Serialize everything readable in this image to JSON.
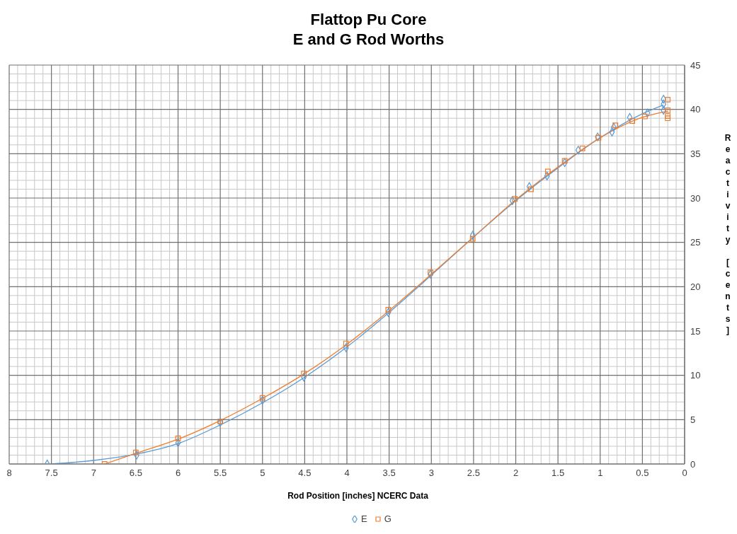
{
  "chart_data": {
    "type": "scatter",
    "title": "Flattop Pu Core\nE and G Rod Worths",
    "xlabel": "Rod Position [inches] NCERC Data",
    "ylabel": "Reactivity [cents]",
    "series": [
      {
        "name": "E",
        "color": "#5b9bd5",
        "marker": "diamond",
        "x": [
          7.55,
          6.49,
          6.0,
          5.5,
          5.0,
          4.51,
          4.01,
          3.51,
          3.01,
          2.51,
          2.04,
          1.84,
          1.63,
          1.42,
          1.26,
          1.03,
          0.86,
          0.84,
          0.65,
          0.44,
          0.25,
          0.25,
          0.25
        ],
        "values": [
          0,
          1.0,
          2.4,
          4.7,
          7.2,
          9.8,
          13.1,
          17.1,
          21.4,
          25.8,
          29.7,
          31.3,
          32.5,
          34.0,
          35.4,
          36.9,
          37.45,
          38.0,
          39.1,
          39.6,
          41.15,
          40.6,
          39.9
        ]
      },
      {
        "name": "G",
        "color": "#ed7d31",
        "marker": "square",
        "x": [
          6.87,
          6.5,
          6.0,
          5.5,
          5.0,
          4.51,
          4.01,
          3.51,
          3.01,
          2.51,
          2.01,
          1.82,
          1.62,
          1.42,
          1.21,
          1.02,
          0.82,
          0.62,
          0.47,
          0.2,
          0.2,
          0.2,
          0.2
        ],
        "values": [
          0,
          1.3,
          2.9,
          4.8,
          7.45,
          10.2,
          13.6,
          17.4,
          21.6,
          25.4,
          29.9,
          31.0,
          33.0,
          34.2,
          35.6,
          36.8,
          38.2,
          38.7,
          39.2,
          41.1,
          39.9,
          39.25,
          39.0
        ]
      },
      {
        "type": "line",
        "color": "#5b9bd5",
        "x": [
          0.25,
          0.5,
          1,
          1.5,
          2,
          2.5,
          3,
          3.5,
          4,
          4.5,
          5,
          5.5,
          6,
          6.5,
          7,
          7.5
        ],
        "values": [
          40.5,
          39.5,
          36.8,
          33.4,
          29.7,
          25.6,
          21.3,
          17.1,
          13.2,
          9.8,
          6.9,
          4.4,
          2.3,
          1.1,
          0.4,
          0
        ]
      },
      {
        "type": "line",
        "color": "#ed7d31",
        "x": [
          0.2,
          0.5,
          1,
          1.5,
          2,
          2.5,
          3,
          3.5,
          4,
          4.5,
          5,
          5.5,
          6,
          6.5,
          6.87
        ],
        "values": [
          39.8,
          39.1,
          36.8,
          33.5,
          29.8,
          25.6,
          21.4,
          17.3,
          13.5,
          10.2,
          7.4,
          4.9,
          2.8,
          1.2,
          0
        ]
      }
    ],
    "xlim": [
      8,
      0
    ],
    "xticks": [
      8,
      7.5,
      7,
      6.5,
      6,
      5.5,
      5,
      4.5,
      4,
      3.5,
      3,
      2.5,
      2,
      1.5,
      1,
      0.5,
      0
    ],
    "ylim": [
      0,
      45
    ],
    "yticks": [
      0,
      5,
      10,
      15,
      20,
      25,
      30,
      35,
      40,
      45
    ],
    "grid": true,
    "legend": "bottom"
  }
}
